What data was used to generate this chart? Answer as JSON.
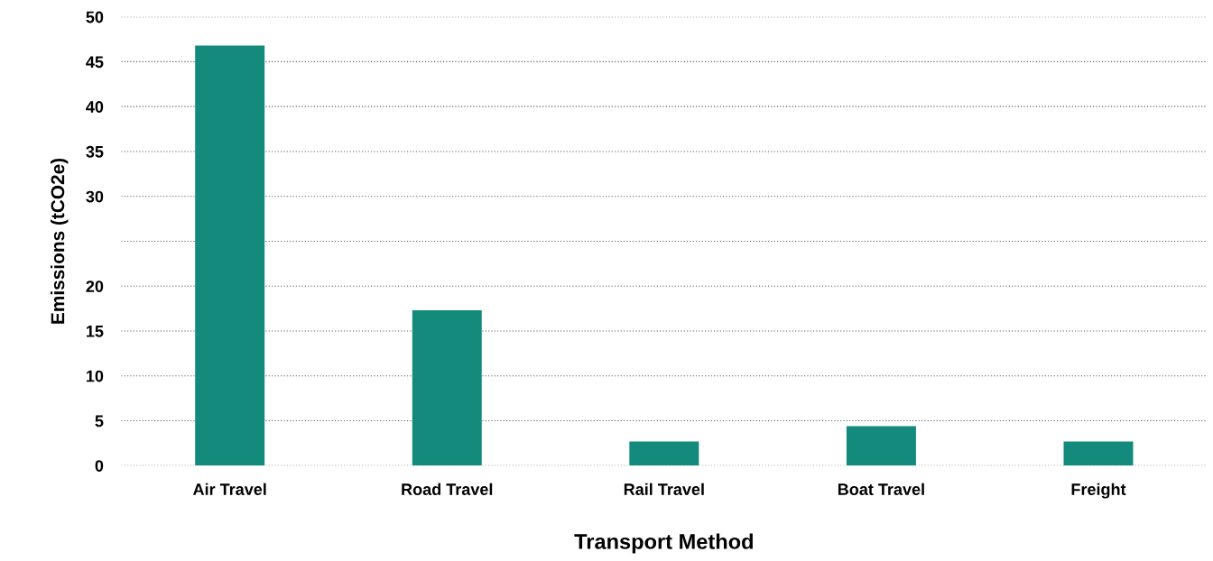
{
  "chart_data": {
    "type": "bar",
    "xlabel": "Transport Method",
    "ylabel": "Emissions (tCO2e)",
    "categories": [
      "Air Travel",
      "Road Travel",
      "Rail Travel",
      "Boat Travel",
      "Freight"
    ],
    "values": [
      46.8,
      17.3,
      2.7,
      4.4,
      2.7
    ],
    "color": "#138a7c",
    "ylim": [
      0,
      50
    ],
    "yticks": [
      0,
      5,
      10,
      15,
      20,
      {
        "value": 25,
        "label": null
      },
      30,
      35,
      40,
      45,
      50
    ],
    "grid": "y"
  }
}
